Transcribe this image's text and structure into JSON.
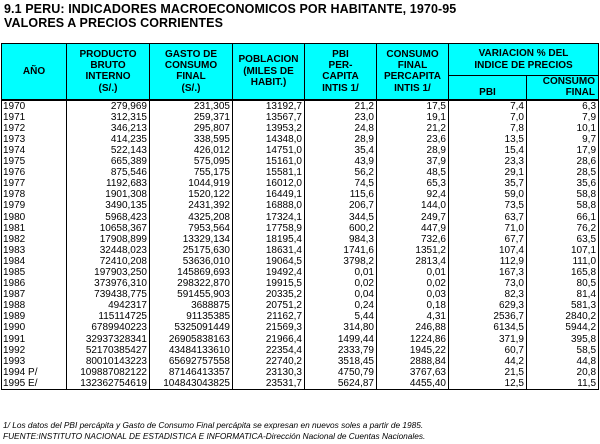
{
  "title": {
    "line1": "9.1 PERU: INDICADORES MACROECONOMICOS POR HABITANTE, 1970-95",
    "line2": "VALORES A PRECIOS CORRIENTES"
  },
  "headers": {
    "year": "AÑO",
    "gdp": [
      "PRODUCTO",
      "BRUTO",
      "INTERNO",
      "(S/.)"
    ],
    "consumption": [
      "GASTO DE",
      "CONSUMO",
      "FINAL",
      "(S/.)"
    ],
    "population": [
      "POBLACION",
      "(MILES DE",
      "HABIT.)"
    ],
    "gdp_pc": [
      "PBI",
      "PER-",
      "CAPITA",
      "INTIS 1/"
    ],
    "cons_pc": [
      "CONSUMO",
      "FINAL",
      "PERCAPITA",
      "INTIS 1/"
    ],
    "variation": [
      "VARIACION % DEL",
      "INDICE DE PRECIOS"
    ],
    "var_pbi": "PBI",
    "var_cons": [
      "CONSUMO",
      "FINAL"
    ]
  },
  "rows": [
    [
      "1970",
      "279,969",
      "231,305",
      "13192,7",
      "21,2",
      "17,5",
      "7,4",
      "6,3"
    ],
    [
      "1971",
      "312,315",
      "259,371",
      "13567,7",
      "23,0",
      "19,1",
      "7,0",
      "7,9"
    ],
    [
      "1972",
      "346,213",
      "295,807",
      "13953,2",
      "24,8",
      "21,2",
      "7,8",
      "10,1"
    ],
    [
      "1973",
      "414,235",
      "338,595",
      "14348,0",
      "28,9",
      "23,6",
      "13,5",
      "9,7"
    ],
    [
      "1974",
      "522,143",
      "426,012",
      "14751,0",
      "35,4",
      "28,9",
      "15,4",
      "17,9"
    ],
    [
      "1975",
      "665,389",
      "575,095",
      "15161,0",
      "43,9",
      "37,9",
      "23,3",
      "28,6"
    ],
    [
      "1976",
      "875,546",
      "755,175",
      "15581,1",
      "56,2",
      "48,5",
      "29,1",
      "28,5"
    ],
    [
      "1977",
      "1192,683",
      "1044,919",
      "16012,0",
      "74,5",
      "65,3",
      "35,7",
      "35,6"
    ],
    [
      "1978",
      "1901,308",
      "1520,122",
      "16449,1",
      "115,6",
      "92,4",
      "59,0",
      "58,8"
    ],
    [
      "1979",
      "3490,135",
      "2431,392",
      "16888,0",
      "206,7",
      "144,0",
      "73,5",
      "58,8"
    ],
    [
      "1980",
      "5968,423",
      "4325,208",
      "17324,1",
      "344,5",
      "249,7",
      "63,7",
      "66,1"
    ],
    [
      "1981",
      "10658,367",
      "7953,564",
      "17758,9",
      "600,2",
      "447,9",
      "71,0",
      "76,2"
    ],
    [
      "1982",
      "17908,899",
      "13329,134",
      "18195,4",
      "984,3",
      "732,6",
      "67,7",
      "63,5"
    ],
    [
      "1983",
      "32448,023",
      "25175,630",
      "18631,4",
      "1741,6",
      "1351,2",
      "107,4",
      "107,1"
    ],
    [
      "1984",
      "72410,208",
      "53636,010",
      "19064,5",
      "3798,2",
      "2813,4",
      "112,9",
      "111,0"
    ],
    [
      "1985",
      "197903,250",
      "145869,693",
      "19492,4",
      "0,01",
      "0,01",
      "167,3",
      "165,8"
    ],
    [
      "1986",
      "373976,310",
      "298322,870",
      "19915,5",
      "0,02",
      "0,02",
      "73,0",
      "80,5"
    ],
    [
      "1987",
      "739438,775",
      "591455,903",
      "20335,2",
      "0,04",
      "0,03",
      "82,3",
      "81,4"
    ],
    [
      "1988",
      "4942317",
      "3688875",
      "20751,2",
      "0,24",
      "0,18",
      "629,3",
      "581,3"
    ],
    [
      "1989",
      "115114725",
      "91135385",
      "21162,7",
      "5,44",
      "4,31",
      "2536,7",
      "2840,2"
    ],
    [
      "1990",
      "6789940223",
      "5325091449",
      "21569,3",
      "314,80",
      "246,88",
      "6134,5",
      "5944,2"
    ],
    [
      "1991",
      "32937328341",
      "26905838163",
      "21966,4",
      "1499,44",
      "1224,86",
      "371,9",
      "395,8"
    ],
    [
      "1992",
      "52170385427",
      "43484133610",
      "22354,4",
      "2333,79",
      "1945,22",
      "60,7",
      "58,5"
    ],
    [
      "1993",
      "80010143223",
      "65692757558",
      "22740,2",
      "3518,45",
      "2888,84",
      "44,2",
      "44,8"
    ],
    [
      "1994 P/",
      "109887082122",
      "87146413357",
      "23130,3",
      "4750,79",
      "3767,63",
      "21,5",
      "20,8"
    ],
    [
      "1995 E/",
      "132362754619",
      "104843043825",
      "23531,7",
      "5624,87",
      "4455,40",
      "12,5",
      "11,5"
    ]
  ],
  "footer": {
    "note": "1/ Los datos del PBI percápita y Gasto de Consumo Final percápita se expresan en nuevos soles a partir de 1985.",
    "source": "FUENTE:INSTITUTO NACIONAL DE ESTADISTICA E INFORMATICA-Dirección Nacional de Cuentas Nacionales."
  }
}
